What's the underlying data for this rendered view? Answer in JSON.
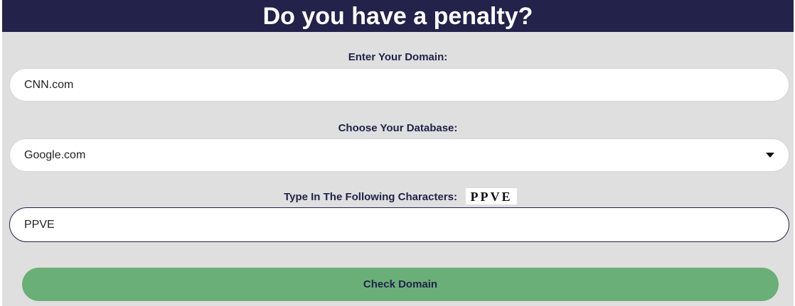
{
  "header": {
    "title": "Do you have a penalty?"
  },
  "domain": {
    "label": "Enter Your Domain:",
    "value": "CNN.com"
  },
  "database": {
    "label": "Choose Your Database:",
    "selected": "Google.com"
  },
  "captcha": {
    "label": "Type In The Following Characters:",
    "image_text": "PPVE",
    "value": "PPVE"
  },
  "submit": {
    "label": "Check Domain"
  },
  "colors": {
    "header": "#22224a",
    "background": "#dfdfdf",
    "button": "#6aaf78"
  }
}
